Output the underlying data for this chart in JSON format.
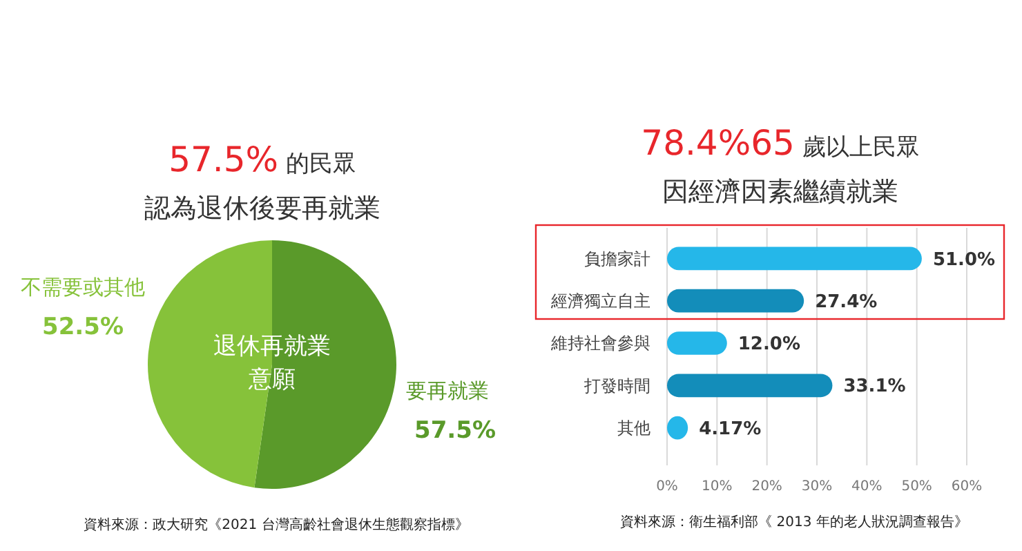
{
  "chart_data": [
    {
      "type": "pie",
      "title": "57.5% 的民眾",
      "subtitle": "認為退休後要再就業",
      "categories": [
        "要再就業",
        "不需要或其他"
      ],
      "values": [
        57.5,
        52.5
      ],
      "value_labels": [
        "57.5%",
        "52.5%"
      ],
      "colors": [
        "#5a9a2a",
        "#86c23a"
      ],
      "annotations": [
        "退休再就業",
        "意願",
        "資料來源：政大研究《2021 台灣高齡社會退休生態觀察指標》"
      ]
    },
    {
      "type": "bar",
      "orientation": "horizontal",
      "title": "78.4%65 歲以上民眾",
      "subtitle": "因經濟因素繼續就業",
      "categories": [
        "負擔家計",
        "經濟獨立自主",
        "維持社會參與",
        "打發時間",
        "其他"
      ],
      "values": [
        51.0,
        27.4,
        12.0,
        33.1,
        4.17
      ],
      "value_labels": [
        "51.0%",
        "27.4%",
        "12.0%",
        "33.1%",
        "4.17%"
      ],
      "colors": [
        "#25b7e9",
        "#138dba",
        "#25b7e9",
        "#138dba",
        "#25b7e9"
      ],
      "xlim": [
        0,
        60
      ],
      "xticks": [
        {
          "value": 0,
          "label": "0%"
        },
        {
          "value": 10,
          "label": "10%"
        },
        {
          "value": 20,
          "label": "20%"
        },
        {
          "value": 30,
          "label": "30%"
        },
        {
          "value": 40,
          "label": "40%"
        },
        {
          "value": 50,
          "label": "50%"
        },
        {
          "value": 60,
          "label": "60%"
        }
      ],
      "grid": "x",
      "annotations": [
        "資料來源：衛生福利部《 2013 年的老人狀況調查報告》"
      ]
    }
  ]
}
